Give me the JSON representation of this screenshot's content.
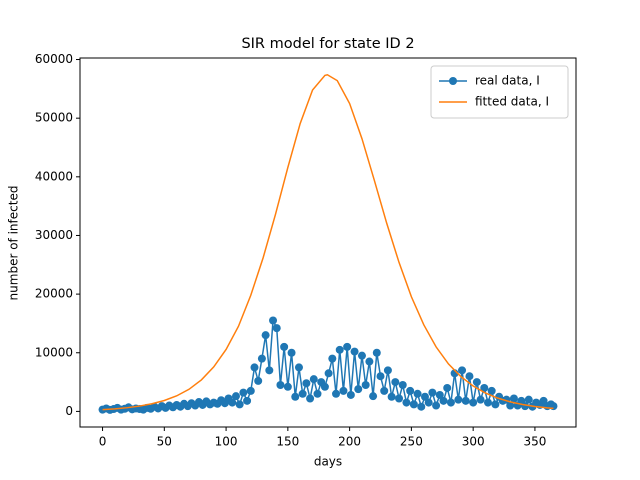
{
  "chart_data": {
    "type": "line",
    "title": "SIR model for state ID 2",
    "xlabel": "days",
    "ylabel": "number of infected",
    "xlim": [
      -18.25,
      383.25
    ],
    "ylim": [
      -2660,
      60260
    ],
    "xticks": [
      0,
      50,
      100,
      150,
      200,
      250,
      300,
      350
    ],
    "yticks": [
      0,
      10000,
      20000,
      30000,
      40000,
      50000,
      60000
    ],
    "grid": false,
    "legend": "upper right",
    "series": [
      {
        "name": "real data, I",
        "color": "#1f77b4",
        "marker": "o",
        "x": [
          0,
          3,
          6,
          9,
          12,
          15,
          18,
          21,
          24,
          27,
          30,
          33,
          36,
          39,
          42,
          45,
          48,
          51,
          54,
          57,
          60,
          63,
          66,
          69,
          72,
          75,
          78,
          81,
          84,
          87,
          90,
          93,
          96,
          99,
          102,
          105,
          108,
          111,
          114,
          117,
          120,
          123,
          126,
          129,
          132,
          135,
          138,
          141,
          144,
          147,
          150,
          153,
          156,
          159,
          162,
          165,
          168,
          171,
          174,
          177,
          180,
          183,
          186,
          189,
          192,
          195,
          198,
          201,
          204,
          207,
          210,
          213,
          216,
          219,
          222,
          225,
          228,
          231,
          234,
          237,
          240,
          243,
          246,
          249,
          252,
          255,
          258,
          261,
          264,
          267,
          270,
          273,
          276,
          279,
          282,
          285,
          288,
          291,
          294,
          297,
          300,
          303,
          306,
          309,
          312,
          315,
          318,
          321,
          324,
          327,
          330,
          333,
          336,
          339,
          342,
          345,
          348,
          351,
          354,
          357,
          360,
          363,
          365
        ],
        "values": [
          300,
          500,
          250,
          400,
          600,
          300,
          450,
          700,
          350,
          500,
          400,
          300,
          600,
          450,
          800,
          500,
          900,
          600,
          1000,
          700,
          1100,
          800,
          1300,
          900,
          1400,
          1000,
          1600,
          1100,
          1700,
          1200,
          1500,
          1300,
          1900,
          1400,
          2200,
          1500,
          2600,
          1200,
          3200,
          1800,
          3500,
          7500,
          5200,
          9000,
          13000,
          7000,
          15500,
          14200,
          4500,
          11000,
          4200,
          10000,
          2500,
          7500,
          3000,
          4800,
          2200,
          5500,
          3000,
          5000,
          4200,
          6500,
          9000,
          3000,
          10500,
          3500,
          11000,
          2800,
          10200,
          3800,
          9500,
          4500,
          8500,
          2600,
          10000,
          6000,
          3500,
          7000,
          2500,
          5000,
          2200,
          4500,
          1500,
          3500,
          1200,
          3000,
          800,
          2500,
          1500,
          3200,
          1000,
          2800,
          1800,
          4000,
          1500,
          6500,
          2000,
          7000,
          1800,
          6000,
          1500,
          5000,
          2000,
          4000,
          1500,
          3500,
          1200,
          2500,
          1800,
          2000,
          1000,
          2200,
          1000,
          1800,
          900,
          2000,
          800,
          1500,
          1100,
          1800,
          900,
          1200,
          900
        ]
      },
      {
        "name": "fitted data, I",
        "color": "#ff7f0e",
        "x": [
          0,
          10,
          20,
          30,
          40,
          50,
          60,
          70,
          80,
          90,
          100,
          110,
          120,
          130,
          140,
          150,
          160,
          170,
          180,
          182,
          190,
          200,
          210,
          220,
          230,
          240,
          250,
          260,
          270,
          280,
          290,
          300,
          310,
          320,
          330,
          340,
          350,
          360,
          365
        ],
        "values": [
          306,
          440,
          632,
          909,
          1305,
          1860,
          2650,
          3770,
          5370,
          7590,
          10560,
          14500,
          19800,
          26200,
          33600,
          41600,
          49100,
          54800,
          57300,
          57400,
          56400,
          52500,
          46500,
          39400,
          32100,
          25400,
          19550,
          14780,
          11000,
          8100,
          5950,
          4330,
          3130,
          2260,
          1625,
          1170,
          843,
          605,
          511
        ]
      }
    ]
  }
}
